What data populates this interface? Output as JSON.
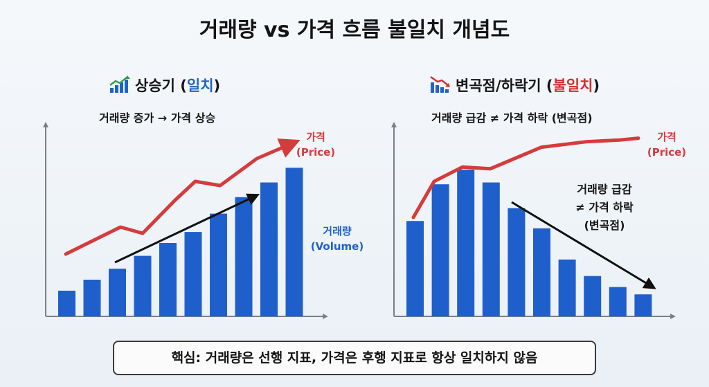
{
  "title": "거래량 vs 가격 흐름 불일치 개념도",
  "left_panel": {
    "icon": "chart-up-icon",
    "title_prefix": "상승기 (",
    "title_highlight": "일치",
    "title_suffix": ")",
    "subtitle": "거래량 증가 → 가격 상승"
  },
  "right_panel": {
    "icon": "chart-down-icon",
    "title_prefix": "변곡점/하락기 (",
    "title_highlight": "불일치",
    "title_suffix": ")",
    "subtitle": "거래량 급감 ≠ 가격 하락 (변곡점)"
  },
  "summary": "핵심: 거래량은 선행 지표, 가격은 후행 지표로 항상 일치하지 않음",
  "colors": {
    "volume": "#1f5fcc",
    "price": "#d63b3b",
    "trend": "#111111",
    "axis": "#7a7f86"
  },
  "chart_data": [
    {
      "type": "bar",
      "series": [
        {
          "name": "거래량 (Volume)",
          "values": [
            1.4,
            2.0,
            2.6,
            3.3,
            4.0,
            4.6,
            5.6,
            6.5,
            7.3,
            8.1
          ]
        },
        {
          "name": "가격 (Price)",
          "type": "line",
          "values": [
            3.0,
            4.3,
            4.0,
            5.6,
            6.5,
            6.3,
            7.6,
            8.3
          ]
        }
      ],
      "ylim": [
        0,
        10
      ],
      "labels": {
        "price_label": "가격",
        "price_label_en": "(Price)",
        "volume_label": "거래량",
        "volume_label_en": "(Volume)"
      },
      "annotation": "",
      "trend_arrow": "up"
    },
    {
      "type": "bar",
      "series": [
        {
          "name": "거래량 (Volume)",
          "values": [
            5.2,
            7.2,
            8.0,
            7.3,
            5.9,
            4.8,
            3.1,
            2.2,
            1.6,
            1.2
          ]
        },
        {
          "name": "가격 (Price)",
          "type": "line",
          "values": [
            5.5,
            7.5,
            8.3,
            8.2,
            9.4,
            9.7,
            9.8,
            9.9
          ]
        }
      ],
      "ylim": [
        0,
        10
      ],
      "labels": {
        "price_label": "가격",
        "price_label_en": "(Price)"
      },
      "annotation": [
        "거래량 급감",
        "≠ 가격 하락",
        "(변곡점)"
      ],
      "trend_arrow": "down"
    }
  ]
}
